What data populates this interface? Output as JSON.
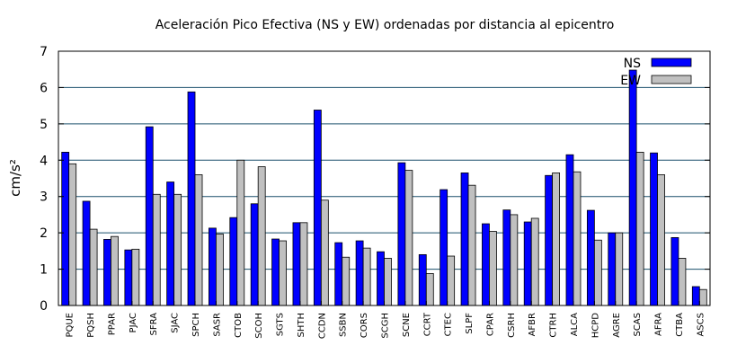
{
  "chart_data": {
    "type": "bar",
    "title": "Aceleración Pico Efectiva (NS y EW) ordenadas por distancia al epicentro",
    "xlabel": "",
    "ylabel": "cm/s²",
    "ylim": [
      0,
      7
    ],
    "yticks": [
      0,
      1,
      2,
      3,
      4,
      5,
      6,
      7
    ],
    "grid": "horizontal",
    "legend_position": "top-right",
    "categories": [
      "PQUE",
      "PQSH",
      "PPAR",
      "PJAC",
      "SFRA",
      "SJAC",
      "SPCH",
      "SASR",
      "CTOB",
      "SCOH",
      "SGTS",
      "SHTH",
      "CCDN",
      "SSBN",
      "CORS",
      "SCGH",
      "SCNE",
      "CCRT",
      "CTEC",
      "SLPF",
      "CPAR",
      "CSRH",
      "AFBR",
      "CTRH",
      "ALCA",
      "HCPD",
      "AGRE",
      "SCAS",
      "AFRA",
      "CTBA",
      "ASCS"
    ],
    "series": [
      {
        "name": "NS",
        "color": "#0000ff",
        "values": [
          4.22,
          2.87,
          1.82,
          1.53,
          4.92,
          3.4,
          5.88,
          2.13,
          2.42,
          2.8,
          1.83,
          2.28,
          5.38,
          1.73,
          1.78,
          1.48,
          3.93,
          1.4,
          3.19,
          3.65,
          2.25,
          2.63,
          2.3,
          3.58,
          4.15,
          2.62,
          2.0,
          6.48,
          4.2,
          1.87,
          0.52
        ]
      },
      {
        "name": "EW",
        "color": "#c0c0c0",
        "values": [
          3.9,
          2.1,
          1.9,
          1.55,
          3.06,
          3.06,
          3.6,
          1.97,
          4.0,
          3.82,
          1.78,
          2.28,
          2.9,
          1.33,
          1.58,
          1.3,
          3.72,
          0.88,
          1.36,
          3.31,
          2.04,
          2.5,
          2.4,
          3.65,
          3.68,
          1.8,
          2.0,
          4.22,
          3.6,
          1.3,
          0.44
        ]
      }
    ]
  }
}
